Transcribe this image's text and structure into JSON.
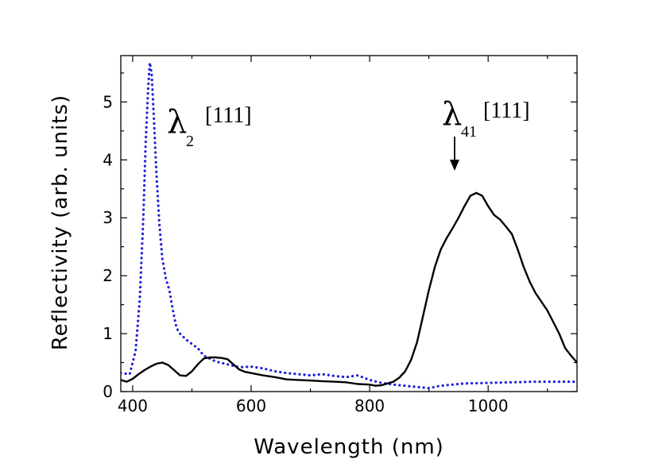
{
  "chart_data": {
    "type": "line",
    "xlabel": "Wavelength (nm)",
    "ylabel": "Reflectivity (arb. units)",
    "xlim": [
      380,
      1150
    ],
    "ylim": [
      0,
      5.8
    ],
    "xticks": [
      400,
      600,
      800,
      1000
    ],
    "yticks": [
      0,
      1,
      2,
      3,
      4,
      5
    ],
    "grid": false,
    "series": [
      {
        "style": "dotted",
        "color": "#1f1fdc",
        "x": [
          380,
          395,
          405,
          412,
          418,
          422,
          426,
          429,
          432,
          436,
          440,
          445,
          450,
          456,
          462,
          468,
          474,
          480,
          490,
          500,
          510,
          520,
          540,
          560,
          580,
          600,
          620,
          640,
          660,
          680,
          700,
          720,
          740,
          760,
          780,
          800,
          820,
          840,
          860,
          880,
          900,
          920,
          940,
          960,
          1000,
          1040,
          1080,
          1120,
          1150
        ],
        "y": [
          0.32,
          0.3,
          0.7,
          1.6,
          3.0,
          4.3,
          5.2,
          5.68,
          5.5,
          4.7,
          3.8,
          2.9,
          2.3,
          1.95,
          1.75,
          1.4,
          1.1,
          1.0,
          0.9,
          0.82,
          0.75,
          0.62,
          0.52,
          0.47,
          0.42,
          0.43,
          0.4,
          0.35,
          0.32,
          0.3,
          0.28,
          0.3,
          0.27,
          0.25,
          0.28,
          0.2,
          0.15,
          0.12,
          0.1,
          0.08,
          0.06,
          0.1,
          0.12,
          0.14,
          0.15,
          0.16,
          0.17,
          0.17,
          0.17
        ]
      },
      {
        "style": "solid",
        "color": "#000000",
        "x": [
          380,
          390,
          400,
          410,
          420,
          430,
          440,
          450,
          460,
          470,
          480,
          490,
          500,
          510,
          520,
          530,
          540,
          550,
          560,
          570,
          580,
          590,
          600,
          620,
          640,
          660,
          680,
          700,
          720,
          740,
          760,
          780,
          800,
          810,
          820,
          830,
          840,
          850,
          860,
          870,
          880,
          890,
          900,
          910,
          920,
          930,
          940,
          950,
          960,
          970,
          980,
          990,
          1000,
          1010,
          1020,
          1030,
          1040,
          1050,
          1060,
          1070,
          1080,
          1090,
          1100,
          1110,
          1120,
          1130,
          1140,
          1150
        ],
        "y": [
          0.2,
          0.17,
          0.22,
          0.3,
          0.37,
          0.43,
          0.48,
          0.5,
          0.46,
          0.37,
          0.28,
          0.27,
          0.35,
          0.47,
          0.57,
          0.59,
          0.59,
          0.58,
          0.56,
          0.47,
          0.38,
          0.34,
          0.32,
          0.28,
          0.25,
          0.21,
          0.2,
          0.19,
          0.18,
          0.17,
          0.16,
          0.13,
          0.12,
          0.1,
          0.11,
          0.14,
          0.17,
          0.24,
          0.35,
          0.55,
          0.85,
          1.3,
          1.75,
          2.15,
          2.45,
          2.65,
          2.82,
          3.0,
          3.2,
          3.38,
          3.43,
          3.38,
          3.2,
          3.05,
          2.97,
          2.85,
          2.72,
          2.45,
          2.15,
          1.9,
          1.7,
          1.55,
          1.4,
          1.2,
          1.0,
          0.75,
          0.62,
          0.5
        ]
      }
    ],
    "annotations": [
      {
        "symbol": "λ",
        "subscript": "2",
        "index": "[111]"
      },
      {
        "symbol": "λ",
        "subscript": "41",
        "index": "[111]",
        "arrow": "down"
      }
    ]
  }
}
